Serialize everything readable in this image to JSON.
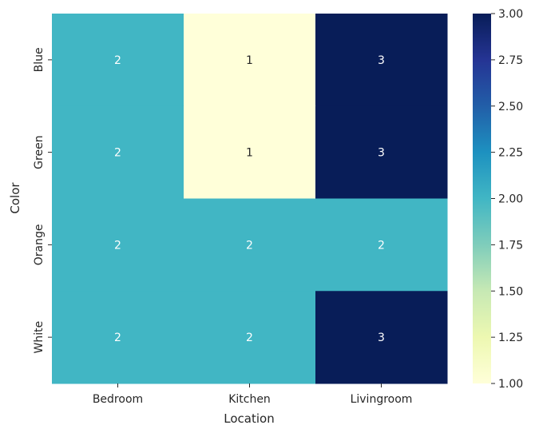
{
  "chart_data": {
    "type": "heatmap",
    "title": "",
    "xlabel": "Location",
    "ylabel": "Color",
    "x_categories": [
      "Bedroom",
      "Kitchen",
      "Livingroom"
    ],
    "y_categories": [
      "Blue",
      "Green",
      "Orange",
      "White"
    ],
    "values": [
      [
        2,
        1,
        3
      ],
      [
        2,
        1,
        3
      ],
      [
        2,
        2,
        2
      ],
      [
        2,
        2,
        3
      ]
    ],
    "annotations": true,
    "colormap": "YlGnBu",
    "colorbar": {
      "min": 1.0,
      "max": 3.0,
      "ticks": [
        "1.00",
        "1.25",
        "1.50",
        "1.75",
        "2.00",
        "2.25",
        "2.50",
        "2.75",
        "3.00"
      ],
      "tick_values": [
        1.0,
        1.25,
        1.5,
        1.75,
        2.0,
        2.25,
        2.5,
        2.75,
        3.0
      ]
    },
    "colors": {
      "low": "#ffffd9",
      "mid": "#41b6c4",
      "high": "#081d58",
      "annotation_light": "#ffffff",
      "annotation_dark": "#262626"
    }
  }
}
